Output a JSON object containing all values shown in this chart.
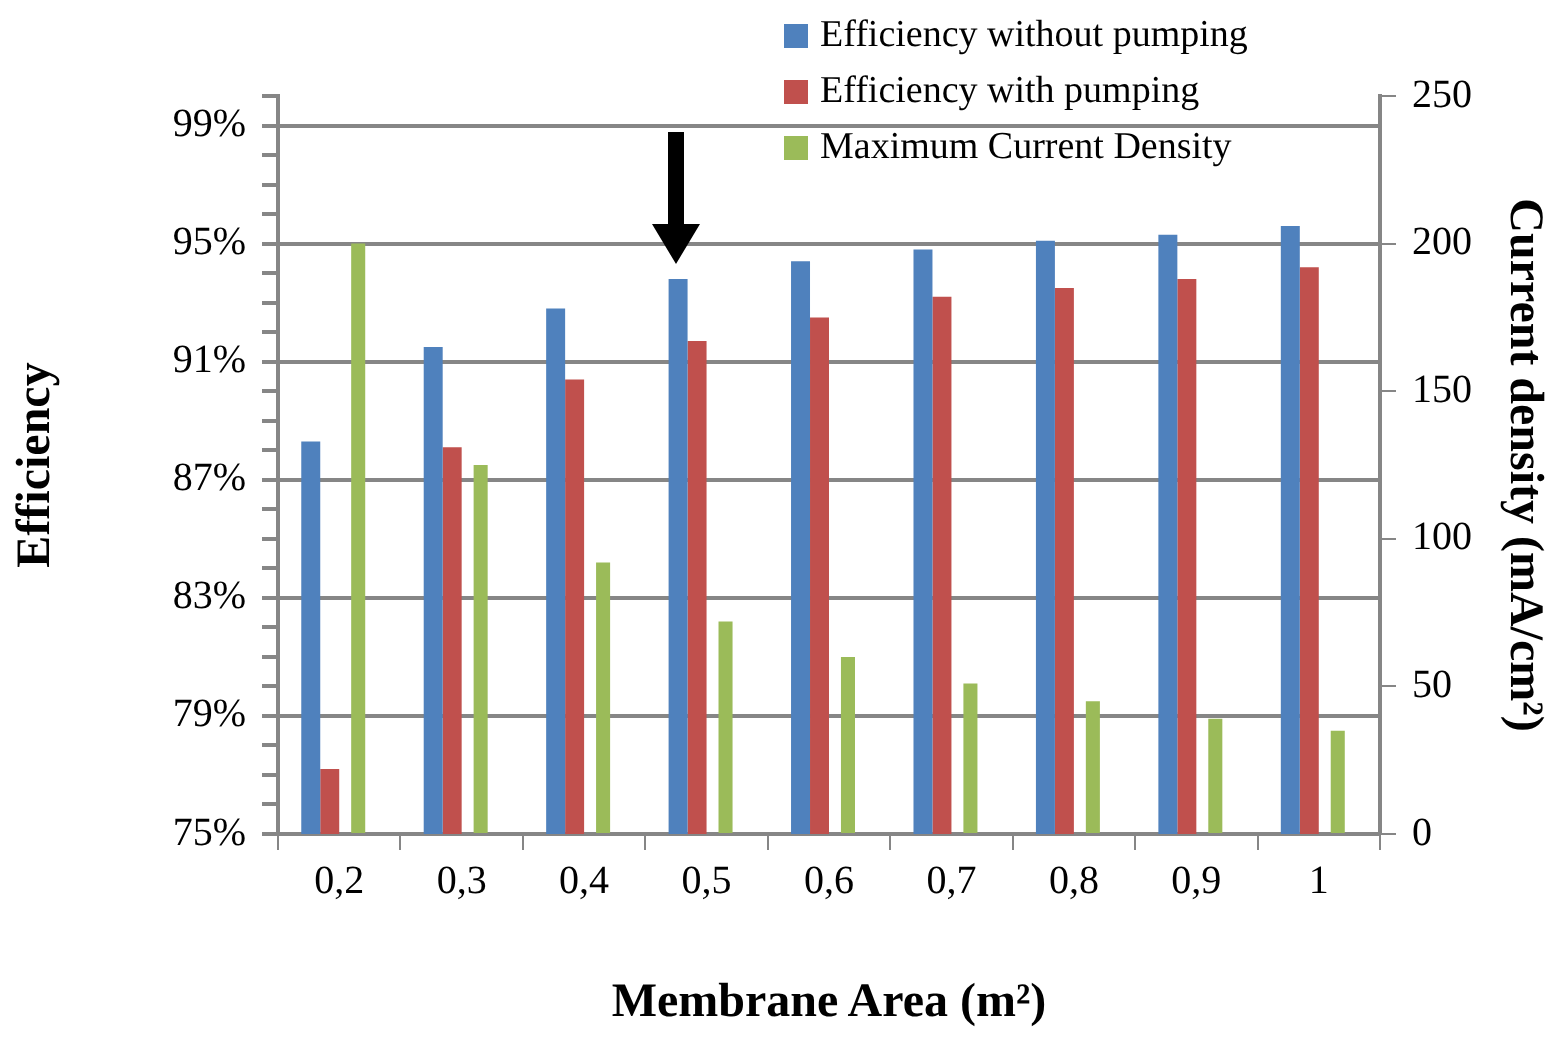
{
  "chart_data": {
    "type": "bar",
    "xlabel": "Membrane Area (m²)",
    "ylabel": "Efficiency",
    "y2label": "Current density (mA/cm²)",
    "categories": [
      "0,2",
      "0,3",
      "0,4",
      "0,5",
      "0,6",
      "0,7",
      "0,8",
      "0,9",
      "1"
    ],
    "series": [
      {
        "name": "Efficiency without pumping",
        "color": "#4f81bd",
        "values": [
          88.3,
          91.5,
          92.8,
          93.8,
          94.4,
          94.8,
          95.1,
          95.3,
          95.6
        ]
      },
      {
        "name": "Efficiency with pumping",
        "color": "#c0504d",
        "values": [
          77.2,
          88.1,
          90.4,
          91.7,
          92.5,
          93.2,
          93.5,
          93.8,
          94.2
        ]
      },
      {
        "name": "Maximum Current Density",
        "color": "#9bbb59",
        "axis": "y2",
        "values": [
          200,
          125,
          92,
          72,
          60,
          51,
          45,
          39,
          35
        ]
      }
    ],
    "ylim": [
      75,
      100
    ],
    "yticks": [
      {
        "value": 75,
        "label": "75%"
      },
      {
        "value": 76,
        "label": null
      },
      {
        "value": 77,
        "label": null
      },
      {
        "value": 78,
        "label": null
      },
      {
        "value": 79,
        "label": "79%"
      },
      {
        "value": 80,
        "label": null
      },
      {
        "value": 81,
        "label": null
      },
      {
        "value": 82,
        "label": null
      },
      {
        "value": 83,
        "label": "83%"
      },
      {
        "value": 84,
        "label": null
      },
      {
        "value": 85,
        "label": null
      },
      {
        "value": 86,
        "label": null
      },
      {
        "value": 87,
        "label": "87%"
      },
      {
        "value": 88,
        "label": null
      },
      {
        "value": 89,
        "label": null
      },
      {
        "value": 90,
        "label": null
      },
      {
        "value": 91,
        "label": "91%"
      },
      {
        "value": 92,
        "label": null
      },
      {
        "value": 93,
        "label": null
      },
      {
        "value": 94,
        "label": null
      },
      {
        "value": 95,
        "label": "95%"
      },
      {
        "value": 96,
        "label": null
      },
      {
        "value": 97,
        "label": null
      },
      {
        "value": 98,
        "label": null
      },
      {
        "value": 99,
        "label": "99%"
      },
      {
        "value": 100,
        "label": null
      }
    ],
    "y2lim": [
      0,
      250
    ],
    "y2ticks": [
      0,
      50,
      100,
      150,
      200,
      250
    ],
    "grid": "y",
    "legend": "top right"
  }
}
